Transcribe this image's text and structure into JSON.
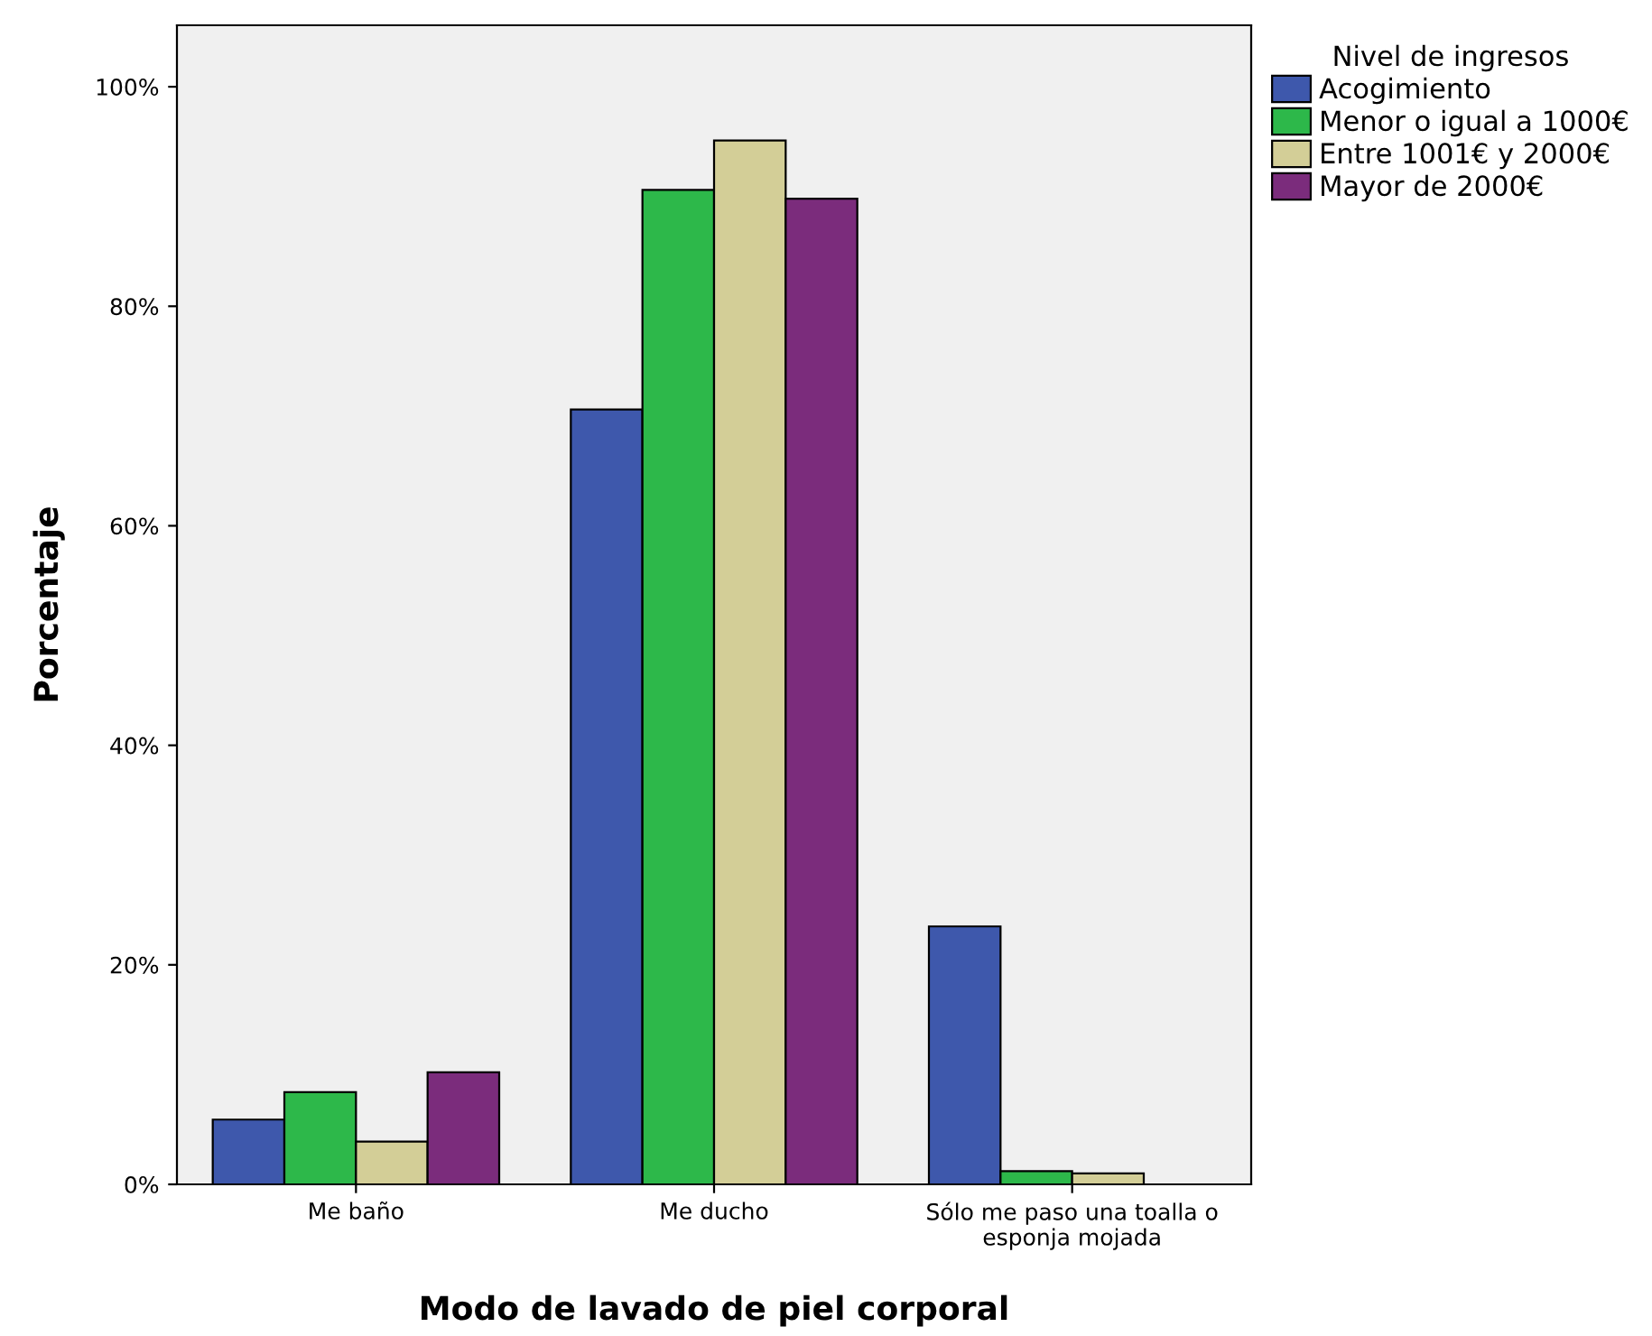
{
  "chart_data": {
    "type": "bar",
    "xlabel": "Modo de lavado de piel corporal",
    "ylabel": "Porcentaje",
    "legend_title": "Nivel de ingresos",
    "categories": [
      "Me baño",
      "Me ducho",
      "Sólo me paso una toalla o\nesponja mojada"
    ],
    "series": [
      {
        "name": "Acogimiento",
        "color": "#3e58ac",
        "values": [
          5.9,
          70.6,
          23.5
        ]
      },
      {
        "name": "Menor o igual a 1000€",
        "color": "#2db84a",
        "values": [
          8.4,
          90.6,
          1.2
        ]
      },
      {
        "name": "Entre 1001€ y 2000€",
        "color": "#d3ce97",
        "values": [
          3.9,
          95.1,
          1.0
        ]
      },
      {
        "name": "Mayor de 2000€",
        "color": "#7b2c7c",
        "values": [
          10.2,
          89.8,
          0.0
        ]
      }
    ],
    "ylim": [
      0,
      105.6
    ],
    "yticks": [
      {
        "value": 0,
        "label": "0%"
      },
      {
        "value": 20,
        "label": "20%"
      },
      {
        "value": 40,
        "label": "40%"
      },
      {
        "value": 60,
        "label": "60%"
      },
      {
        "value": 80,
        "label": "80%"
      },
      {
        "value": 100,
        "label": "100%"
      }
    ],
    "grid": false,
    "legend": "top right"
  }
}
